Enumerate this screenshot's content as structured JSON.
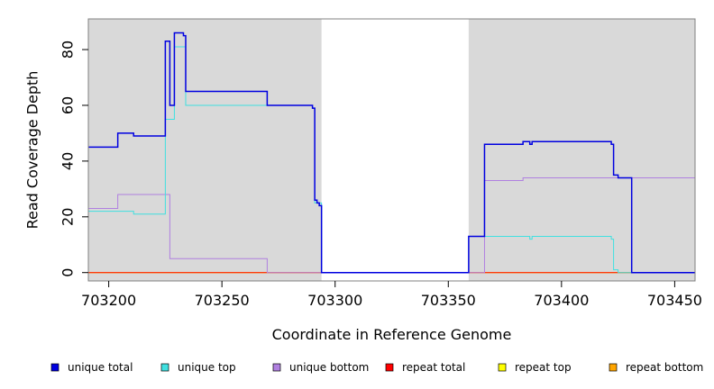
{
  "chart_data": {
    "type": "line",
    "xlabel": "Coordinate in Reference Genome",
    "ylabel": "Read Coverage Depth",
    "xlim": [
      703191,
      703459
    ],
    "ylim": [
      -3,
      91
    ],
    "xticks": [
      703200,
      703250,
      703300,
      703350,
      703400,
      703450
    ],
    "yticks": [
      0,
      20,
      40,
      60,
      80
    ],
    "step_lines": true,
    "shaded_regions": [
      {
        "x0": 703191,
        "x1": 703294,
        "color": "#d9d9d9"
      },
      {
        "x0": 703359,
        "x1": 703459,
        "color": "#d9d9d9"
      }
    ],
    "legend_position": "bottom",
    "series": [
      {
        "name": "unique total",
        "color": "#0000e0",
        "x": [
          703191,
          703204,
          703211,
          703225,
          703227,
          703229,
          703233,
          703234,
          703269,
          703270,
          703290,
          703291,
          703292,
          703293,
          703294,
          703359,
          703366,
          703383,
          703386,
          703387,
          703422,
          703423,
          703425,
          703431,
          703459
        ],
        "y": [
          45,
          50,
          49,
          83,
          60,
          86,
          85,
          65,
          65,
          60,
          59,
          26,
          25,
          24,
          0,
          13,
          46,
          47,
          46,
          47,
          46,
          35,
          34,
          0,
          0
        ]
      },
      {
        "name": "unique top",
        "color": "#40e0e0",
        "x": [
          703191,
          703211,
          703225,
          703227,
          703229,
          703234,
          703270,
          703290,
          703291,
          703294,
          703359,
          703386,
          703387,
          703422,
          703423,
          703425,
          703459
        ],
        "y": [
          22,
          21,
          55,
          55,
          81,
          60,
          60,
          59,
          25,
          0,
          13,
          12,
          13,
          12,
          1,
          0,
          0
        ]
      },
      {
        "name": "unique bottom",
        "color": "#b080e0",
        "x": [
          703191,
          703204,
          703227,
          703270,
          703294,
          703359,
          703366,
          703383,
          703422,
          703459
        ],
        "y": [
          23,
          28,
          5,
          0,
          0,
          0,
          33,
          34,
          34,
          0
        ]
      },
      {
        "name": "repeat total",
        "color": "#ff0000",
        "x": [
          703191,
          703459
        ],
        "y": [
          0,
          0
        ]
      },
      {
        "name": "repeat top",
        "color": "#ffff00",
        "x": [
          703191,
          703459
        ],
        "y": [
          0,
          0
        ]
      },
      {
        "name": "repeat bottom",
        "color": "#ffa500",
        "x": [
          703191,
          703459
        ],
        "y": [
          0,
          0
        ]
      }
    ]
  }
}
